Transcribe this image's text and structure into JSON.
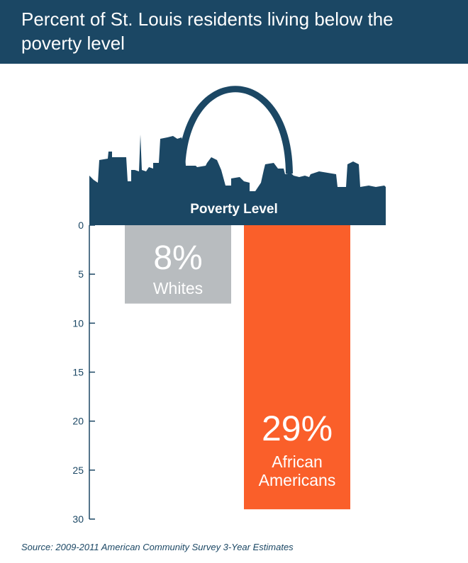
{
  "title": "Percent of St. Louis residents living below the poverty level",
  "source": "Source: 2009-2011 American Community Survey 3-Year Estimates",
  "colors": {
    "header": "#1b4764",
    "skyline": "#1b4764",
    "whites_bar": "#b8bcbf",
    "african_americans_bar": "#fa5f2a",
    "axis": "#1b4764"
  },
  "icons": [
    "st-louis-skyline-icon",
    "gateway-arch-icon"
  ],
  "chart_data": {
    "type": "bar",
    "orientation": "vertical-downward",
    "baseline_label": "Poverty Level",
    "categories": [
      "Whites",
      "African Americans"
    ],
    "values": [
      8,
      29
    ],
    "value_labels": [
      "8%",
      "29%"
    ],
    "category_labels": [
      [
        "Whites"
      ],
      [
        "African",
        "Americans"
      ]
    ],
    "ylim": [
      0,
      30
    ],
    "yticks": [
      0,
      5,
      10,
      15,
      20,
      25,
      30
    ],
    "grid": false,
    "legend": "none"
  }
}
